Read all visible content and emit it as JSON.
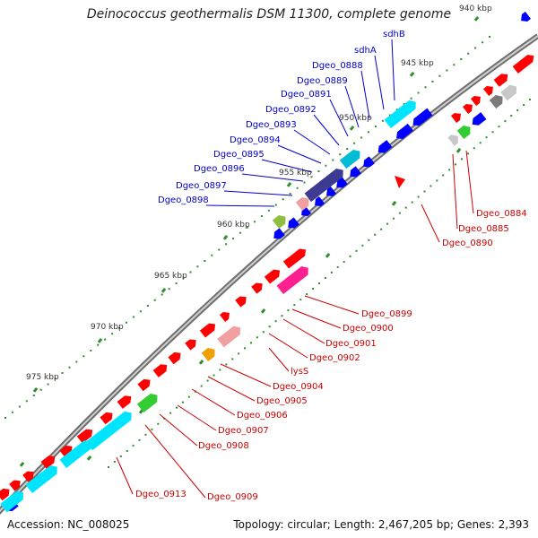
{
  "title": "Deinococcus geothermalis DSM 11300, complete genome",
  "footer": {
    "accession": "Accession: NC_008025",
    "summary": "Topology: circular; Length: 2,467,205 bp; Genes: 2,393"
  },
  "colors": {
    "backbone": "#7a7a7a",
    "forward_gene": "#ff0000",
    "reverse_gene": "#0000ff",
    "cyan_gene": "#00e5ff",
    "tick": "#2f8f2f",
    "label_blue": "#0000cc",
    "label_red": "#cc0000"
  },
  "scale_labels": [
    "940 kbp",
    "945 kbp",
    "950 kbp",
    "955 kbp",
    "960 kbp",
    "965 kbp",
    "970 kbp",
    "975 kbp"
  ],
  "labels_blue": [
    "sdhB",
    "sdhA",
    "Dgeo_0888",
    "Dgeo_0889",
    "Dgeo_0891",
    "Dgeo_0892",
    "Dgeo_0893",
    "Dgeo_0894",
    "Dgeo_0895",
    "Dgeo_0896",
    "Dgeo_0897",
    "Dgeo_0898"
  ],
  "labels_red": [
    "Dgeo_0884",
    "Dgeo_0885",
    "Dgeo_0890",
    "Dgeo_0899",
    "Dgeo_0900",
    "Dgeo_0901",
    "Dgeo_0902",
    "lysS",
    "Dgeo_0904",
    "Dgeo_0905",
    "Dgeo_0906",
    "Dgeo_0907",
    "Dgeo_0908",
    "Dgeo_0913",
    "Dgeo_0909"
  ]
}
